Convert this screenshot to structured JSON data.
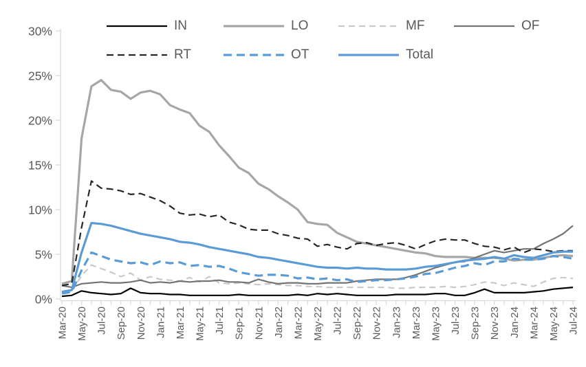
{
  "chart_data": {
    "type": "line",
    "title": "",
    "xlabel": "",
    "ylabel": "",
    "ylim": [
      0,
      30
    ],
    "y_ticks": [
      0,
      5,
      10,
      15,
      20,
      25,
      30
    ],
    "y_tick_suffix": "%",
    "grid": false,
    "legend_position": "top",
    "x_tick_label_interval": 2,
    "x": [
      "Mar-20",
      "Apr-20",
      "May-20",
      "Jun-20",
      "Jul-20",
      "Aug-20",
      "Sep-20",
      "Oct-20",
      "Nov-20",
      "Dec-20",
      "Jan-21",
      "Feb-21",
      "Mar-21",
      "Apr-21",
      "May-21",
      "Jun-21",
      "Jul-21",
      "Aug-21",
      "Sep-21",
      "Oct-21",
      "Nov-21",
      "Dec-21",
      "Jan-22",
      "Feb-22",
      "Mar-22",
      "Apr-22",
      "May-22",
      "Jun-22",
      "Jul-22",
      "Aug-22",
      "Sep-22",
      "Oct-22",
      "Nov-22",
      "Dec-22",
      "Jan-23",
      "Feb-23",
      "Mar-23",
      "Apr-23",
      "May-23",
      "Jun-23",
      "Jul-23",
      "Aug-23",
      "Sep-23",
      "Oct-23",
      "Nov-23",
      "Dec-23",
      "Jan-24",
      "Feb-24",
      "Mar-24",
      "Apr-24",
      "May-24",
      "Jun-24",
      "Jul-24"
    ],
    "series": [
      {
        "name": "IN",
        "color": "#000000",
        "dash": "none",
        "width": 2.2,
        "values": [
          0.3,
          0.4,
          0.9,
          0.7,
          0.6,
          0.5,
          0.6,
          1.2,
          0.7,
          0.6,
          0.6,
          0.5,
          0.5,
          0.4,
          0.4,
          0.4,
          0.4,
          0.4,
          0.5,
          0.4,
          0.4,
          0.4,
          0.4,
          0.4,
          0.5,
          0.4,
          0.6,
          0.5,
          0.6,
          0.5,
          0.4,
          0.4,
          0.4,
          0.4,
          0.5,
          0.5,
          0.5,
          0.5,
          0.6,
          0.6,
          0.4,
          0.4,
          0.7,
          1.1,
          0.7,
          0.7,
          0.7,
          0.7,
          0.8,
          0.9,
          1.1,
          1.2,
          1.3
        ]
      },
      {
        "name": "LO",
        "color": "#a6a6a6",
        "dash": "none",
        "width": 3.2,
        "values": [
          1.7,
          2.0,
          18.0,
          23.8,
          24.5,
          23.4,
          23.2,
          22.4,
          23.1,
          23.3,
          22.9,
          21.7,
          21.2,
          20.8,
          19.4,
          18.7,
          17.2,
          16.0,
          14.7,
          14.1,
          12.9,
          12.3,
          11.5,
          10.8,
          10.0,
          8.6,
          8.4,
          8.3,
          7.4,
          6.9,
          6.4,
          6.2,
          6.0,
          5.8,
          5.6,
          5.4,
          5.2,
          5.1,
          4.8,
          4.7,
          4.7,
          4.7,
          4.6,
          4.6,
          4.6,
          4.5,
          4.3,
          4.4,
          4.4,
          4.6,
          4.8,
          4.9,
          4.8
        ]
      },
      {
        "name": "MF",
        "color": "#c9c9c9",
        "dash": "9 6",
        "width": 2.2,
        "values": [
          0.8,
          0.9,
          2.6,
          3.8,
          3.4,
          3.0,
          2.5,
          2.9,
          2.1,
          2.5,
          2.2,
          2.1,
          2.0,
          2.4,
          1.9,
          2.5,
          1.8,
          1.7,
          1.8,
          1.7,
          1.6,
          1.7,
          1.6,
          1.5,
          1.5,
          1.4,
          1.4,
          1.3,
          1.3,
          1.3,
          1.3,
          1.3,
          1.3,
          1.3,
          1.2,
          1.2,
          1.3,
          1.3,
          1.3,
          1.4,
          1.3,
          1.4,
          1.6,
          1.9,
          1.8,
          1.5,
          1.8,
          1.6,
          1.4,
          1.9,
          2.3,
          2.4,
          2.3
        ]
      },
      {
        "name": "OF",
        "color": "#737373",
        "dash": "none",
        "width": 2.2,
        "values": [
          1.5,
          1.3,
          1.7,
          1.8,
          1.9,
          1.8,
          1.8,
          1.9,
          2.1,
          1.8,
          1.9,
          1.8,
          2.0,
          1.9,
          2.0,
          2.0,
          2.1,
          1.9,
          1.9,
          1.8,
          2.2,
          1.9,
          1.7,
          1.8,
          1.8,
          1.7,
          1.7,
          1.8,
          1.8,
          1.8,
          2.0,
          2.1,
          2.2,
          2.2,
          2.2,
          2.4,
          2.7,
          3.1,
          3.5,
          3.8,
          4.1,
          4.2,
          4.6,
          5.0,
          5.4,
          5.2,
          5.4,
          5.6,
          5.6,
          6.2,
          6.7,
          7.3,
          8.2
        ]
      },
      {
        "name": "RT",
        "color": "#262626",
        "dash": "10 6",
        "width": 2.2,
        "values": [
          1.5,
          1.7,
          8.0,
          13.2,
          12.4,
          12.3,
          12.1,
          11.7,
          11.8,
          11.4,
          11.0,
          10.4,
          9.6,
          9.4,
          9.5,
          9.2,
          9.4,
          8.6,
          8.3,
          7.8,
          7.7,
          7.7,
          7.3,
          7.1,
          6.8,
          6.7,
          5.9,
          6.1,
          5.8,
          5.6,
          6.2,
          6.3,
          6.0,
          6.2,
          6.3,
          6.0,
          5.6,
          6.1,
          6.5,
          6.7,
          6.6,
          6.6,
          6.2,
          5.9,
          5.8,
          5.5,
          5.8,
          5.2,
          5.6,
          5.5,
          5.3,
          5.4,
          5.4
        ]
      },
      {
        "name": "OT",
        "color": "#5b9bd5",
        "dash": "12 7",
        "width": 3.2,
        "values": [
          0.6,
          0.8,
          3.2,
          5.2,
          4.8,
          4.4,
          4.2,
          4.0,
          4.1,
          3.8,
          4.2,
          4.0,
          4.1,
          3.7,
          3.8,
          3.6,
          3.7,
          3.4,
          3.0,
          2.8,
          2.6,
          2.7,
          2.7,
          2.6,
          2.3,
          2.4,
          2.2,
          2.3,
          2.1,
          2.2,
          1.9,
          2.0,
          2.1,
          2.1,
          2.2,
          2.3,
          2.5,
          2.8,
          2.9,
          3.2,
          3.5,
          3.7,
          4.0,
          3.8,
          4.2,
          4.2,
          4.5,
          4.4,
          4.4,
          4.5,
          4.8,
          4.7,
          4.5
        ]
      },
      {
        "name": "Total",
        "color": "#5b9bd5",
        "dash": "none",
        "width": 3.2,
        "values": [
          0.8,
          1.0,
          5.2,
          8.5,
          8.4,
          8.2,
          7.9,
          7.6,
          7.3,
          7.1,
          6.9,
          6.7,
          6.4,
          6.3,
          6.1,
          5.8,
          5.6,
          5.4,
          5.2,
          5.0,
          4.7,
          4.6,
          4.4,
          4.2,
          4.0,
          3.8,
          3.6,
          3.5,
          3.5,
          3.4,
          3.5,
          3.4,
          3.4,
          3.3,
          3.3,
          3.3,
          3.4,
          3.6,
          3.7,
          3.9,
          4.1,
          4.3,
          4.4,
          4.5,
          4.7,
          4.5,
          4.9,
          4.7,
          4.6,
          4.9,
          5.2,
          5.3,
          5.3
        ]
      }
    ],
    "legend_rows": [
      [
        "IN",
        "LO",
        "MF",
        "OF"
      ],
      [
        "RT",
        "OT",
        "Total"
      ]
    ]
  },
  "style": {
    "axis_line_color": "#d9d9d9",
    "tick_color": "#d9d9d9",
    "label_color": "#595959",
    "accent_blue": "#5b9bd5"
  }
}
